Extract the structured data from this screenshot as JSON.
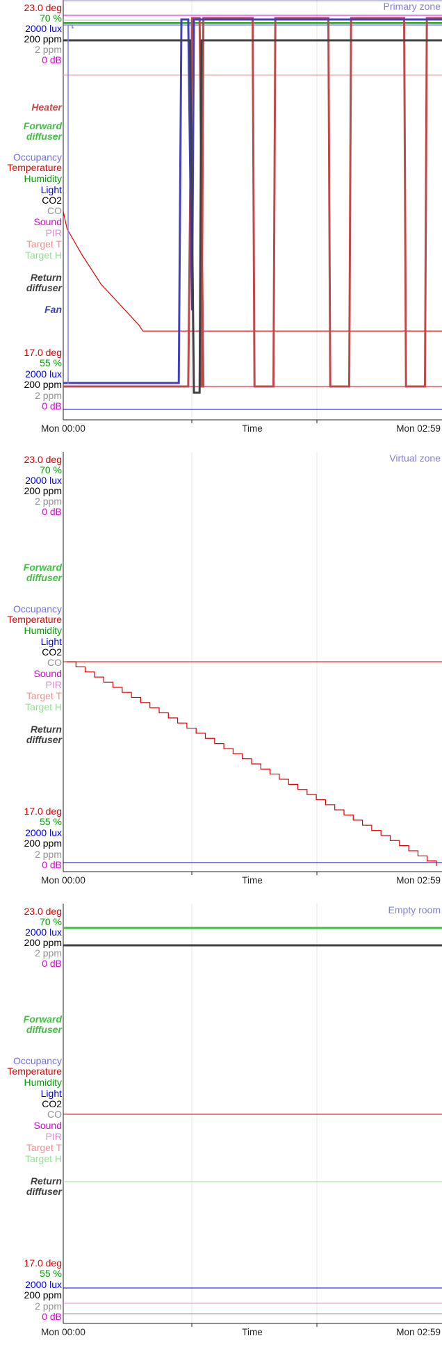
{
  "chart_data": [
    {
      "type": "line",
      "title": "Primary zone",
      "xlabel": "Time",
      "x_ticks": [
        "Mon 00:00",
        "Mon 02:59"
      ],
      "grid": true,
      "legend_placement": "left",
      "y_labels": [
        {
          "text": "23.0 deg",
          "color": "#e00000"
        },
        {
          "text": "70 %",
          "color": "#00a000"
        },
        {
          "text": "2000 lux",
          "color": "#0000e0"
        },
        {
          "text": "200 ppm",
          "color": "#000000"
        },
        {
          "text": "2 ppm",
          "color": "#909090"
        },
        {
          "text": "0 dB",
          "color": "#e000e0"
        },
        {
          "text": "Heater",
          "color": "#c04848",
          "style": "bold-italic"
        },
        {
          "text": "Forward",
          "color": "#40c040",
          "style": "bold-italic"
        },
        {
          "text": "diffuser",
          "color": "#40c040",
          "style": "bold-italic"
        },
        {
          "text": "Occupancy",
          "color": "#7070e0"
        },
        {
          "text": "Temperature",
          "color": "#e00000"
        },
        {
          "text": "Humidity",
          "color": "#00a000"
        },
        {
          "text": "Light",
          "color": "#0000e0"
        },
        {
          "text": "CO2",
          "color": "#000000"
        },
        {
          "text": "CO",
          "color": "#909090"
        },
        {
          "text": "Sound",
          "color": "#e000e0"
        },
        {
          "text": "PIR",
          "color": "#e080e0"
        },
        {
          "text": "Target T",
          "color": "#f09090"
        },
        {
          "text": "Target H",
          "color": "#90e090"
        },
        {
          "text": "Return",
          "color": "#404040",
          "style": "bold-italic"
        },
        {
          "text": "diffuser",
          "color": "#404040",
          "style": "bold-italic"
        },
        {
          "text": "Fan",
          "color": "#4040c0",
          "style": "bold-italic"
        },
        {
          "text": "17.0 deg",
          "color": "#e00000"
        },
        {
          "text": "55 %",
          "color": "#00a000"
        },
        {
          "text": "2000 lux",
          "color": "#0000e0"
        },
        {
          "text": "200 ppm",
          "color": "#000000"
        },
        {
          "text": "2 ppm",
          "color": "#909090"
        },
        {
          "text": "0 dB",
          "color": "#e000e0"
        }
      ],
      "series": [
        {
          "color": "#e00000",
          "width": 1.2,
          "values": [
            [
              0,
              23.0
            ],
            [
              0.01,
              22.4
            ],
            [
              0.05,
              21.5
            ],
            [
              0.1,
              20.5
            ],
            [
              0.15,
              19.8
            ],
            [
              0.2,
              19.1
            ],
            [
              0.21,
              18.9
            ],
            [
              1,
              18.9
            ]
          ]
        },
        {
          "color": "#c04848",
          "width": 3,
          "values": [
            [
              0,
              0
            ],
            [
              0.33,
              0
            ],
            [
              0.34,
              1
            ],
            [
              0.36,
              1
            ],
            [
              0.37,
              0
            ],
            [
              0.365,
              0
            ],
            [
              0.37,
              1
            ],
            [
              0.5,
              1
            ],
            [
              0.505,
              0
            ],
            [
              0.555,
              0
            ],
            [
              0.56,
              1
            ],
            [
              0.7,
              1
            ],
            [
              0.705,
              0
            ],
            [
              0.755,
              0
            ],
            [
              0.76,
              1
            ],
            [
              0.9,
              1
            ],
            [
              0.905,
              0
            ],
            [
              0.955,
              0
            ],
            [
              0.96,
              1
            ],
            [
              1,
              1
            ]
          ]
        },
        {
          "color": "#4040c0",
          "width": 3,
          "values": [
            [
              0,
              0
            ],
            [
              0.305,
              0
            ],
            [
              0.312,
              1
            ],
            [
              0.33,
              1
            ],
            [
              0.34,
              0.2
            ],
            [
              0.345,
              1
            ],
            [
              1,
              1
            ]
          ]
        },
        {
          "color": "#404040",
          "width": 3,
          "values": [
            [
              0,
              1
            ],
            [
              0.335,
              1
            ],
            [
              0.345,
              0
            ],
            [
              0.36,
              0
            ],
            [
              0.365,
              1
            ],
            [
              1,
              1
            ]
          ]
        }
      ]
    },
    {
      "type": "line",
      "title": "Virtual zone",
      "xlabel": "Time",
      "x_ticks": [
        "Mon 00:00",
        "Mon 02:59"
      ],
      "grid": true,
      "legend_placement": "left",
      "y_labels": [
        {
          "text": "23.0 deg",
          "color": "#e00000"
        },
        {
          "text": "70 %",
          "color": "#00a000"
        },
        {
          "text": "2000 lux",
          "color": "#0000e0"
        },
        {
          "text": "200 ppm",
          "color": "#000000"
        },
        {
          "text": "2 ppm",
          "color": "#909090"
        },
        {
          "text": "0 dB",
          "color": "#e000e0"
        },
        {
          "text": "Forward",
          "color": "#40c040",
          "style": "bold-italic"
        },
        {
          "text": "diffuser",
          "color": "#40c040",
          "style": "bold-italic"
        },
        {
          "text": "Occupancy",
          "color": "#7070e0"
        },
        {
          "text": "Temperature",
          "color": "#e00000"
        },
        {
          "text": "Humidity",
          "color": "#00a000"
        },
        {
          "text": "Light",
          "color": "#0000e0"
        },
        {
          "text": "CO2",
          "color": "#000000"
        },
        {
          "text": "CO",
          "color": "#909090"
        },
        {
          "text": "Sound",
          "color": "#e000e0"
        },
        {
          "text": "PIR",
          "color": "#e080e0"
        },
        {
          "text": "Target T",
          "color": "#f09090"
        },
        {
          "text": "Target H",
          "color": "#90e090"
        },
        {
          "text": "Return",
          "color": "#404040",
          "style": "bold-italic"
        },
        {
          "text": "diffuser",
          "color": "#404040",
          "style": "bold-italic"
        },
        {
          "text": "17.0 deg",
          "color": "#e00000"
        },
        {
          "text": "55 %",
          "color": "#00a000"
        },
        {
          "text": "2000 lux",
          "color": "#0000e0"
        },
        {
          "text": "200 ppm",
          "color": "#000000"
        },
        {
          "text": "2 ppm",
          "color": "#909090"
        },
        {
          "text": "0 dB",
          "color": "#e000e0"
        }
      ]
    },
    {
      "type": "line",
      "title": "Empty room",
      "xlabel": "Time",
      "x_ticks": [
        "Mon 00:00",
        "Mon 02:59"
      ],
      "grid": true,
      "legend_placement": "left",
      "y_labels": [
        {
          "text": "23.0 deg",
          "color": "#e00000"
        },
        {
          "text": "70 %",
          "color": "#00a000"
        },
        {
          "text": "2000 lux",
          "color": "#0000e0"
        },
        {
          "text": "200 ppm",
          "color": "#000000"
        },
        {
          "text": "2 ppm",
          "color": "#909090"
        },
        {
          "text": "0 dB",
          "color": "#e000e0"
        },
        {
          "text": "Forward",
          "color": "#40c040",
          "style": "bold-italic"
        },
        {
          "text": "diffuser",
          "color": "#40c040",
          "style": "bold-italic"
        },
        {
          "text": "Occupancy",
          "color": "#7070e0"
        },
        {
          "text": "Temperature",
          "color": "#e00000"
        },
        {
          "text": "Humidity",
          "color": "#00a000"
        },
        {
          "text": "Light",
          "color": "#0000e0"
        },
        {
          "text": "CO2",
          "color": "#000000"
        },
        {
          "text": "CO",
          "color": "#909090"
        },
        {
          "text": "Sound",
          "color": "#e000e0"
        },
        {
          "text": "PIR",
          "color": "#e080e0"
        },
        {
          "text": "Target T",
          "color": "#f09090"
        },
        {
          "text": "Target H",
          "color": "#90e090"
        },
        {
          "text": "Return",
          "color": "#404040",
          "style": "bold-italic"
        },
        {
          "text": "diffuser",
          "color": "#404040",
          "style": "bold-italic"
        },
        {
          "text": "17.0 deg",
          "color": "#e00000"
        },
        {
          "text": "55 %",
          "color": "#00a000"
        },
        {
          "text": "2000 lux",
          "color": "#0000e0"
        },
        {
          "text": "200 ppm",
          "color": "#000000"
        },
        {
          "text": "2 ppm",
          "color": "#909090"
        },
        {
          "text": "0 dB",
          "color": "#e000e0"
        }
      ]
    }
  ]
}
